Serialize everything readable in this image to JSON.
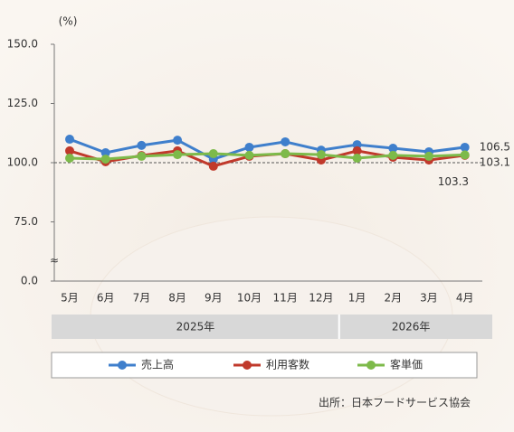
{
  "chart_data": {
    "type": "line",
    "unit_label": "(%)",
    "categories": [
      "5月",
      "6月",
      "7月",
      "8月",
      "9月",
      "10月",
      "11月",
      "12月",
      "1月",
      "2月",
      "3月",
      "4月"
    ],
    "x_groups": [
      {
        "label": "2025年",
        "count": 8
      },
      {
        "label": "2026年",
        "count": 4
      }
    ],
    "series": [
      {
        "name": "売上高",
        "color": "#3f7fcc",
        "label_color": "#6a9ad6",
        "values": [
          109.9,
          104.2,
          107.3,
          109.5,
          101.5,
          106.5,
          108.8,
          105.3,
          107.6,
          106.1,
          104.6,
          106.5
        ]
      },
      {
        "name": "利用客数",
        "color": "#c0392b",
        "label_color": "#c0392b",
        "values": [
          105,
          100.4,
          103,
          105,
          98.5,
          102.7,
          103.8,
          101.1,
          105,
          102.3,
          101.1,
          103.1
        ]
      },
      {
        "name": "客単価",
        "color": "#7dba4a",
        "label_color": "#4caf50",
        "values": [
          101.9,
          101.5,
          102.7,
          103.4,
          103.8,
          103.1,
          103.8,
          103.4,
          101.9,
          103.1,
          102.7,
          103.3
        ]
      }
    ],
    "ylim": [
      0,
      150
    ],
    "yticks": [
      {
        "value": 0,
        "label": "0.0"
      },
      {
        "value": 75,
        "label": "75.0"
      },
      {
        "value": 100,
        "label": "100.0"
      },
      {
        "value": 125,
        "label": "125.0"
      },
      {
        "value": 150,
        "label": "150.0"
      }
    ],
    "axis_break": true,
    "reference_line": 100,
    "source": "出所：日本フードサービス協会"
  }
}
